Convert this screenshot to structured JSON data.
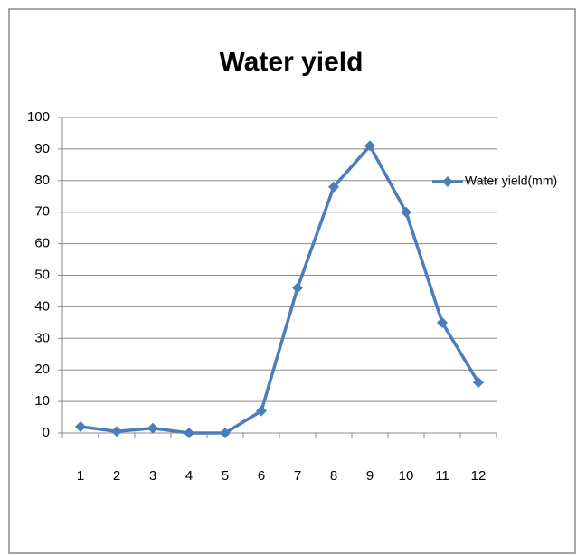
{
  "chart_data": {
    "type": "line",
    "title": "Water yield",
    "categories": [
      1,
      2,
      3,
      4,
      5,
      6,
      7,
      8,
      9,
      10,
      11,
      12
    ],
    "series": [
      {
        "name": "Water yield(mm)",
        "color": "#4a7ebb",
        "values": [
          2,
          0.5,
          1.5,
          0,
          0,
          7,
          46,
          78,
          91,
          70,
          35,
          16
        ]
      }
    ],
    "ylim": [
      0,
      100
    ],
    "yticks": [
      0,
      10,
      20,
      30,
      40,
      50,
      60,
      70,
      80,
      90,
      100
    ],
    "grid": true,
    "legend": "right"
  }
}
